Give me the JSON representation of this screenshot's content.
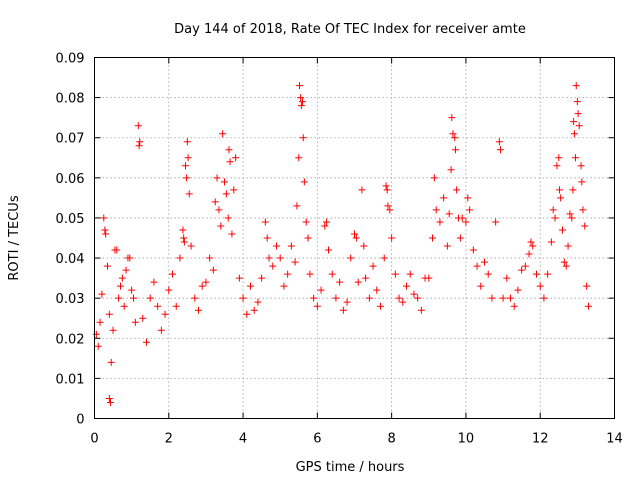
{
  "chart_data": {
    "type": "scatter",
    "title": "Day 144 of 2018, Rate Of TEC Index for receiver amte",
    "xlabel": "GPS time / hours",
    "ylabel": "ROTI / TECUs",
    "xlim": [
      0,
      14
    ],
    "ylim": [
      0,
      0.09
    ],
    "xticks": [
      0,
      2,
      4,
      6,
      8,
      10,
      12,
      14
    ],
    "xtick_labels": [
      "0",
      "2",
      "4",
      "6",
      "8",
      "10",
      "12",
      "14"
    ],
    "yticks": [
      0,
      0.01,
      0.02,
      0.03,
      0.04,
      0.05,
      0.06,
      0.07,
      0.08,
      0.09
    ],
    "ytick_labels": [
      "0",
      "0.01",
      "0.02",
      "0.03",
      "0.04",
      "0.05",
      "0.06",
      "0.07",
      "0.08",
      "0.09"
    ],
    "grid": true,
    "marker": "+",
    "marker_color": "#ff0000",
    "series": [
      {
        "name": "ROTI",
        "points": [
          [
            0.05,
            0.021
          ],
          [
            0.1,
            0.018
          ],
          [
            0.15,
            0.024
          ],
          [
            0.2,
            0.031
          ],
          [
            0.25,
            0.05
          ],
          [
            0.28,
            0.047
          ],
          [
            0.3,
            0.046
          ],
          [
            0.35,
            0.038
          ],
          [
            0.4,
            0.026
          ],
          [
            0.45,
            0.014
          ],
          [
            0.4,
            0.005
          ],
          [
            0.43,
            0.004
          ],
          [
            0.5,
            0.022
          ],
          [
            0.55,
            0.042
          ],
          [
            0.6,
            0.042
          ],
          [
            0.65,
            0.03
          ],
          [
            0.7,
            0.033
          ],
          [
            0.75,
            0.035
          ],
          [
            0.8,
            0.028
          ],
          [
            0.85,
            0.037
          ],
          [
            0.9,
            0.04
          ],
          [
            0.95,
            0.04
          ],
          [
            1.0,
            0.032
          ],
          [
            1.05,
            0.03
          ],
          [
            1.1,
            0.024
          ],
          [
            1.18,
            0.073
          ],
          [
            1.2,
            0.068
          ],
          [
            1.22,
            0.069
          ],
          [
            1.3,
            0.025
          ],
          [
            1.4,
            0.019
          ],
          [
            1.5,
            0.03
          ],
          [
            1.6,
            0.034
          ],
          [
            1.7,
            0.028
          ],
          [
            1.8,
            0.022
          ],
          [
            1.9,
            0.026
          ],
          [
            2.0,
            0.032
          ],
          [
            2.1,
            0.036
          ],
          [
            2.2,
            0.028
          ],
          [
            2.3,
            0.04
          ],
          [
            2.38,
            0.047
          ],
          [
            2.4,
            0.045
          ],
          [
            2.42,
            0.044
          ],
          [
            2.45,
            0.063
          ],
          [
            2.48,
            0.06
          ],
          [
            2.5,
            0.069
          ],
          [
            2.52,
            0.065
          ],
          [
            2.55,
            0.056
          ],
          [
            2.6,
            0.043
          ],
          [
            2.7,
            0.03
          ],
          [
            2.8,
            0.027
          ],
          [
            2.9,
            0.033
          ],
          [
            3.0,
            0.034
          ],
          [
            3.1,
            0.04
          ],
          [
            3.2,
            0.037
          ],
          [
            3.25,
            0.054
          ],
          [
            3.3,
            0.06
          ],
          [
            3.35,
            0.052
          ],
          [
            3.4,
            0.048
          ],
          [
            3.45,
            0.071
          ],
          [
            3.5,
            0.059
          ],
          [
            3.55,
            0.056
          ],
          [
            3.6,
            0.05
          ],
          [
            3.62,
            0.067
          ],
          [
            3.65,
            0.064
          ],
          [
            3.7,
            0.046
          ],
          [
            3.75,
            0.057
          ],
          [
            3.8,
            0.065
          ],
          [
            3.9,
            0.035
          ],
          [
            4.0,
            0.03
          ],
          [
            4.1,
            0.026
          ],
          [
            4.2,
            0.033
          ],
          [
            4.3,
            0.027
          ],
          [
            4.4,
            0.029
          ],
          [
            4.5,
            0.035
          ],
          [
            4.6,
            0.049
          ],
          [
            4.65,
            0.045
          ],
          [
            4.7,
            0.04
          ],
          [
            4.8,
            0.038
          ],
          [
            4.9,
            0.043
          ],
          [
            5.0,
            0.04
          ],
          [
            5.1,
            0.033
          ],
          [
            5.2,
            0.036
          ],
          [
            5.3,
            0.043
          ],
          [
            5.4,
            0.039
          ],
          [
            5.45,
            0.053
          ],
          [
            5.5,
            0.065
          ],
          [
            5.52,
            0.083
          ],
          [
            5.55,
            0.08
          ],
          [
            5.57,
            0.078
          ],
          [
            5.6,
            0.079
          ],
          [
            5.62,
            0.07
          ],
          [
            5.65,
            0.059
          ],
          [
            5.7,
            0.049
          ],
          [
            5.75,
            0.045
          ],
          [
            5.8,
            0.036
          ],
          [
            5.9,
            0.03
          ],
          [
            6.0,
            0.028
          ],
          [
            6.1,
            0.032
          ],
          [
            6.2,
            0.048
          ],
          [
            6.25,
            0.049
          ],
          [
            6.3,
            0.042
          ],
          [
            6.4,
            0.036
          ],
          [
            6.5,
            0.03
          ],
          [
            6.6,
            0.034
          ],
          [
            6.7,
            0.027
          ],
          [
            6.8,
            0.029
          ],
          [
            6.9,
            0.04
          ],
          [
            7.0,
            0.046
          ],
          [
            7.05,
            0.045
          ],
          [
            7.1,
            0.034
          ],
          [
            7.2,
            0.057
          ],
          [
            7.25,
            0.043
          ],
          [
            7.3,
            0.035
          ],
          [
            7.4,
            0.03
          ],
          [
            7.5,
            0.038
          ],
          [
            7.6,
            0.032
          ],
          [
            7.7,
            0.028
          ],
          [
            7.8,
            0.04
          ],
          [
            7.85,
            0.058
          ],
          [
            7.88,
            0.057
          ],
          [
            7.9,
            0.053
          ],
          [
            7.95,
            0.052
          ],
          [
            8.0,
            0.045
          ],
          [
            8.1,
            0.036
          ],
          [
            8.2,
            0.03
          ],
          [
            8.3,
            0.029
          ],
          [
            8.4,
            0.033
          ],
          [
            8.5,
            0.036
          ],
          [
            8.6,
            0.031
          ],
          [
            8.7,
            0.03
          ],
          [
            8.8,
            0.027
          ],
          [
            8.9,
            0.035
          ],
          [
            9.0,
            0.035
          ],
          [
            9.1,
            0.045
          ],
          [
            9.15,
            0.06
          ],
          [
            9.2,
            0.052
          ],
          [
            9.3,
            0.049
          ],
          [
            9.4,
            0.055
          ],
          [
            9.5,
            0.043
          ],
          [
            9.55,
            0.051
          ],
          [
            9.6,
            0.062
          ],
          [
            9.62,
            0.075
          ],
          [
            9.65,
            0.071
          ],
          [
            9.7,
            0.07
          ],
          [
            9.72,
            0.067
          ],
          [
            9.75,
            0.057
          ],
          [
            9.8,
            0.05
          ],
          [
            9.85,
            0.045
          ],
          [
            9.9,
            0.05
          ],
          [
            10.0,
            0.049
          ],
          [
            10.05,
            0.055
          ],
          [
            10.1,
            0.052
          ],
          [
            10.2,
            0.042
          ],
          [
            10.3,
            0.038
          ],
          [
            10.4,
            0.033
          ],
          [
            10.5,
            0.039
          ],
          [
            10.6,
            0.036
          ],
          [
            10.7,
            0.03
          ],
          [
            10.8,
            0.049
          ],
          [
            10.9,
            0.069
          ],
          [
            10.93,
            0.067
          ],
          [
            11.0,
            0.03
          ],
          [
            11.1,
            0.035
          ],
          [
            11.2,
            0.03
          ],
          [
            11.3,
            0.028
          ],
          [
            11.4,
            0.032
          ],
          [
            11.5,
            0.037
          ],
          [
            11.6,
            0.038
          ],
          [
            11.7,
            0.041
          ],
          [
            11.75,
            0.044
          ],
          [
            11.8,
            0.043
          ],
          [
            11.9,
            0.036
          ],
          [
            12.0,
            0.033
          ],
          [
            12.1,
            0.03
          ],
          [
            12.2,
            0.036
          ],
          [
            12.3,
            0.044
          ],
          [
            12.35,
            0.052
          ],
          [
            12.4,
            0.05
          ],
          [
            12.45,
            0.063
          ],
          [
            12.5,
            0.065
          ],
          [
            12.52,
            0.057
          ],
          [
            12.55,
            0.055
          ],
          [
            12.6,
            0.047
          ],
          [
            12.65,
            0.039
          ],
          [
            12.7,
            0.038
          ],
          [
            12.75,
            0.043
          ],
          [
            12.8,
            0.051
          ],
          [
            12.85,
            0.05
          ],
          [
            12.88,
            0.057
          ],
          [
            12.9,
            0.074
          ],
          [
            12.92,
            0.071
          ],
          [
            12.95,
            0.065
          ],
          [
            12.97,
            0.083
          ],
          [
            13.0,
            0.079
          ],
          [
            13.02,
            0.076
          ],
          [
            13.05,
            0.073
          ],
          [
            13.1,
            0.063
          ],
          [
            13.12,
            0.059
          ],
          [
            13.15,
            0.052
          ],
          [
            13.2,
            0.048
          ],
          [
            13.25,
            0.033
          ],
          [
            13.3,
            0.028
          ]
        ]
      }
    ]
  }
}
